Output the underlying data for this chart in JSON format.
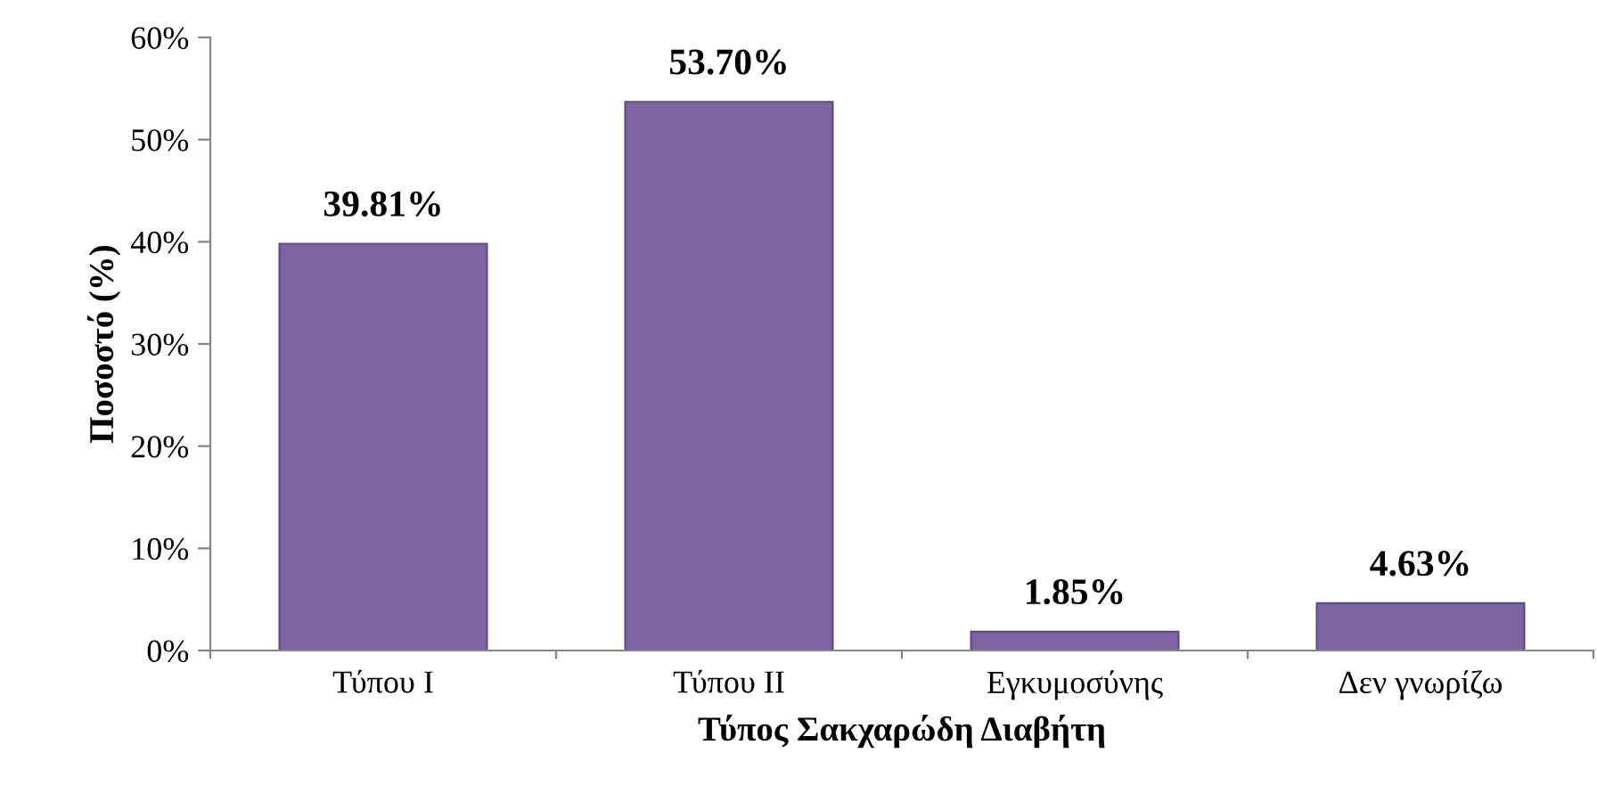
{
  "chart_data": {
    "type": "bar",
    "xlabel": "Τύπος Σακχαρώδη Διαβήτη",
    "ylabel": "Ποσοστό (%)",
    "categories": [
      "Τύπου Ι",
      "Τύπου ΙΙ",
      "Εγκυμοσύνης",
      "Δεν γνωρίζω"
    ],
    "values": [
      39.81,
      53.7,
      1.85,
      4.63
    ],
    "value_labels": [
      "39.81%",
      "53.70%",
      "1.85%",
      "4.63%"
    ],
    "color": "#8064a2",
    "ylim": [
      0,
      60
    ],
    "yticks": [
      {
        "value": 0,
        "label": "0%"
      },
      {
        "value": 10,
        "label": "10%"
      },
      {
        "value": 20,
        "label": "20%"
      },
      {
        "value": 30,
        "label": "30%"
      },
      {
        "value": 40,
        "label": "40%"
      },
      {
        "value": 50,
        "label": "50%"
      },
      {
        "value": 60,
        "label": "60%"
      }
    ],
    "grid": false,
    "legend": false
  }
}
